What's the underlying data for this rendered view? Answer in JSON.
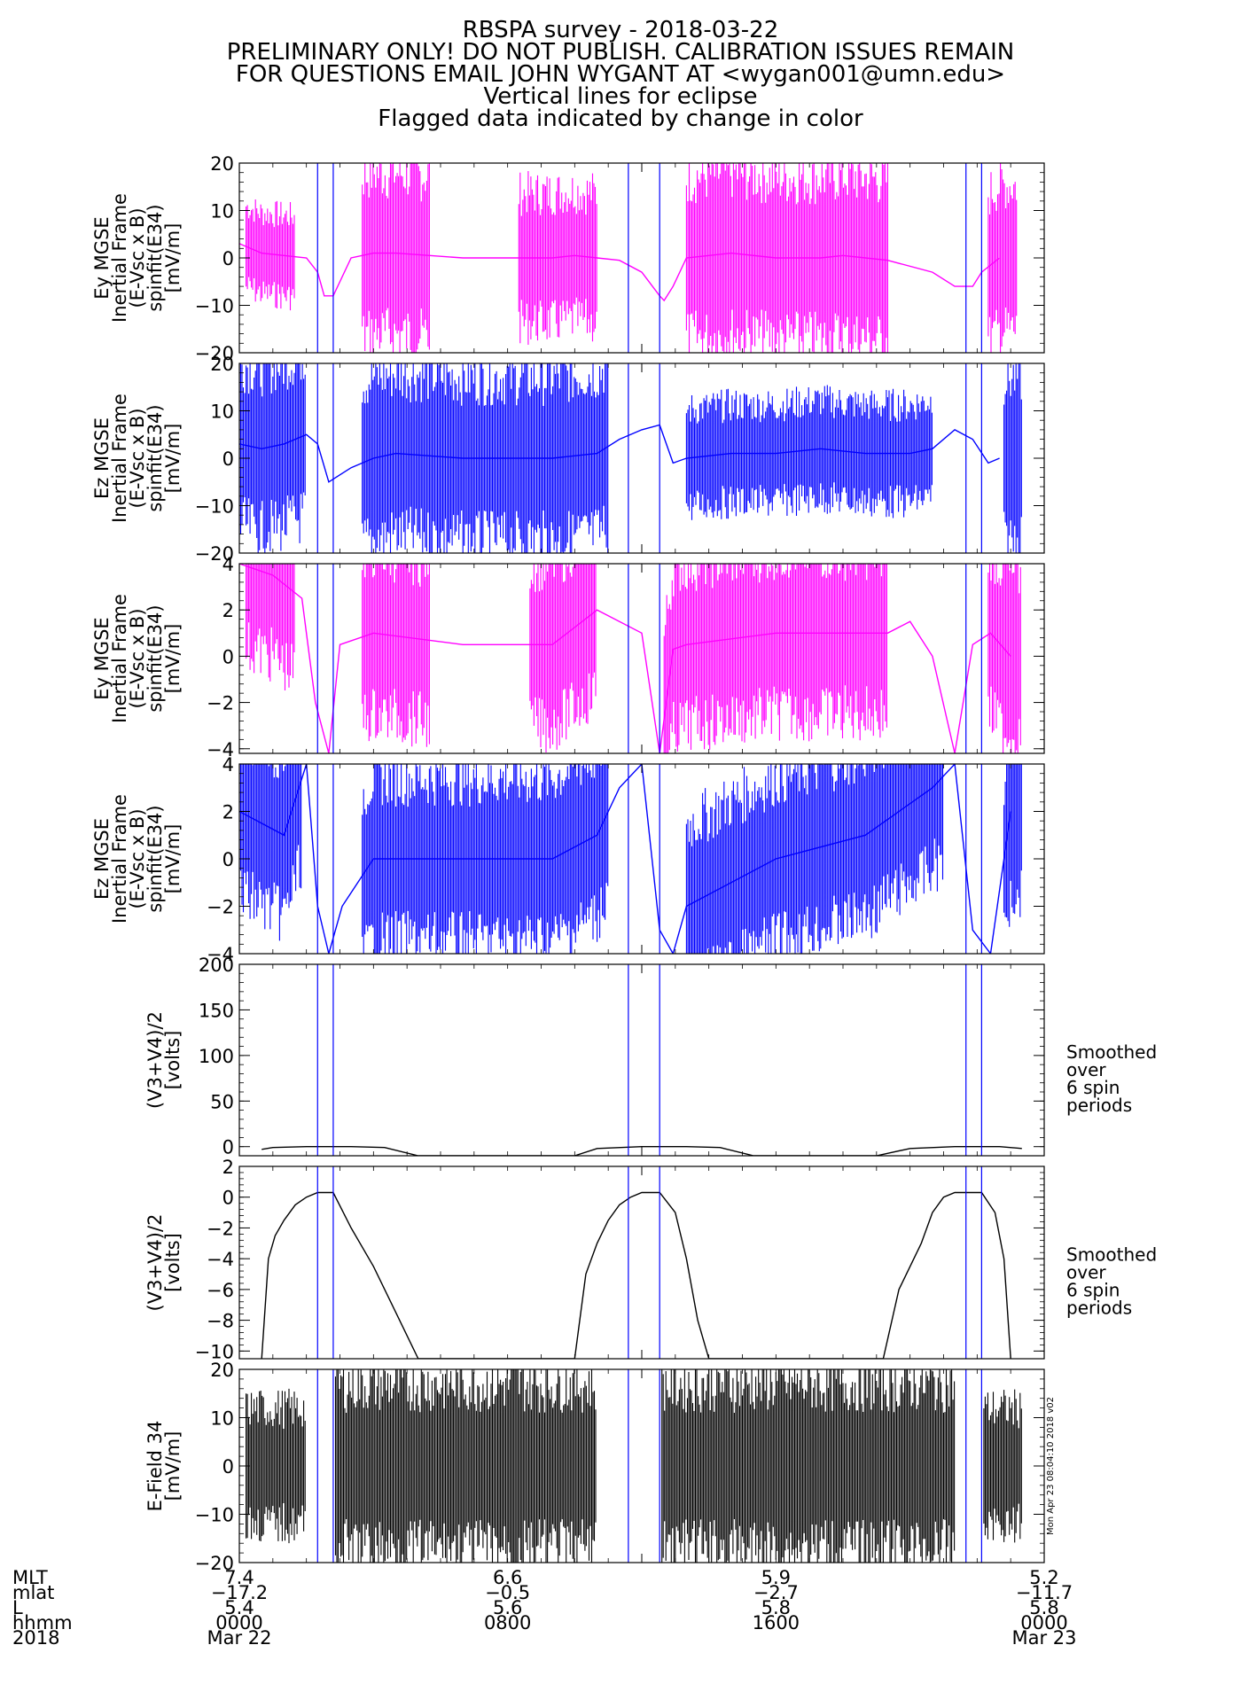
{
  "header": {
    "lines": [
      "RBSPA survey - 2018-03-22",
      "PRELIMINARY ONLY! DO NOT PUBLISH. CALIBRATION ISSUES REMAIN",
      "FOR QUESTIONS EMAIL JOHN WYGANT AT <wygan001@umn.edu>",
      "Vertical lines for eclipse",
      "Flagged data indicated by change in color"
    ]
  },
  "colors": {
    "magenta": "#ff00ff",
    "blue": "#0000ff",
    "black": "#000000",
    "eclipse_line": "#0000ff"
  },
  "chart_data": [
    {
      "type": "line",
      "panel": "Ey MGSE inertial (±20)",
      "ylabel": [
        "Ey MGSE",
        "Inertial Frame",
        "(E-Vsc x B)",
        "spinfit(E34)",
        "[mV/m]"
      ],
      "ylim": [
        -20,
        20
      ],
      "yticks": [
        -20,
        -10,
        0,
        10,
        20
      ],
      "color": "magenta",
      "smooth_x": [
        0,
        1,
        2,
        3,
        3.5,
        3.8,
        4.2,
        5,
        6,
        7,
        10,
        14,
        15,
        16,
        17,
        18,
        18.8,
        19,
        19.4,
        20,
        21,
        22,
        24,
        26,
        27,
        28,
        29,
        31,
        32,
        32.8,
        33.2,
        34
      ],
      "smooth_y": [
        3,
        1,
        0.5,
        0,
        -3,
        -8,
        -8,
        0,
        1,
        1,
        0,
        0,
        0.5,
        0,
        -0.5,
        -3,
        -8,
        -9,
        -6,
        0,
        0.5,
        1,
        0,
        0,
        0.5,
        0,
        -0.5,
        -3,
        -6,
        -6,
        -3,
        0
      ],
      "bursts": [
        [
          0.3,
          2.5,
          0.5
        ],
        [
          5.5,
          8.5,
          1.0
        ],
        [
          12.5,
          16.0,
          0.8
        ],
        [
          20.0,
          29.0,
          1.0
        ],
        [
          33.5,
          34.8,
          0.9
        ]
      ],
      "eclipses": [
        [
          3.5,
          4.2
        ],
        [
          17.4,
          18.8
        ],
        [
          32.5,
          33.2
        ]
      ]
    },
    {
      "type": "line",
      "panel": "Ez MGSE inertial (±20)",
      "ylabel": [
        "Ez MGSE",
        "Inertial Frame",
        "(E-Vsc x B)",
        "spinfit(E34)",
        "[mV/m]"
      ],
      "ylim": [
        -20,
        20
      ],
      "yticks": [
        -20,
        -10,
        0,
        10,
        20
      ],
      "color": "blue",
      "smooth_x": [
        0,
        1,
        2,
        3,
        3.5,
        4,
        5,
        6,
        7,
        10,
        14,
        16,
        17,
        18,
        18.8,
        19.4,
        20,
        22,
        24,
        26,
        28,
        30,
        31,
        32,
        32.8,
        33.5,
        34
      ],
      "smooth_y": [
        3,
        2,
        3,
        5,
        3,
        -5,
        -2,
        0,
        1,
        0,
        0,
        1,
        4,
        6,
        7,
        -1,
        0,
        1,
        1,
        2,
        1,
        1,
        2,
        6,
        4,
        -1,
        0
      ],
      "bursts": [
        [
          0,
          3.0,
          1.0
        ],
        [
          5.5,
          16.5,
          1.0
        ],
        [
          20.0,
          31.0,
          0.6
        ],
        [
          34.2,
          35.0,
          1.0
        ]
      ],
      "eclipses": [
        [
          3.5,
          4.2
        ],
        [
          17.4,
          18.8
        ],
        [
          32.5,
          33.2
        ]
      ]
    },
    {
      "type": "line",
      "panel": "Ey MGSE inertial (±4)",
      "ylabel": [
        "Ey MGSE",
        "Inertial Frame",
        "(E-Vsc x B)",
        "spinfit(E34)",
        "[mV/m]"
      ],
      "ylim": [
        -4.2,
        4
      ],
      "yticks": [
        -4,
        -2,
        0,
        2,
        4
      ],
      "color": "magenta",
      "smooth_x": [
        0,
        1.5,
        2.8,
        3.4,
        4.0,
        4.5,
        6,
        10,
        14,
        16,
        18,
        18.8,
        19.4,
        20,
        24,
        27,
        29,
        30,
        31,
        32,
        32.8,
        33.6,
        34.5
      ],
      "smooth_y": [
        4,
        3.5,
        2.5,
        -2,
        -4.2,
        0.5,
        1,
        0.5,
        0.5,
        2,
        1,
        -4.2,
        0.3,
        0.5,
        1,
        1,
        1,
        1.5,
        0,
        -4.2,
        0.5,
        1,
        0
      ],
      "bursts": [
        [
          0.3,
          2.5,
          1.0
        ],
        [
          5.5,
          8.5,
          1.0
        ],
        [
          13.0,
          16.0,
          1.0
        ],
        [
          19.0,
          29.0,
          1.0
        ],
        [
          33.5,
          35.0,
          1.0
        ]
      ],
      "eclipses": [
        [
          3.5,
          4.2
        ],
        [
          17.4,
          18.8
        ],
        [
          32.5,
          33.2
        ]
      ]
    },
    {
      "type": "line",
      "panel": "Ez MGSE inertial (±4)",
      "ylabel": [
        "Ez MGSE",
        "Inertial Frame",
        "(E-Vsc x B)",
        "spinfit(E34)",
        "[mV/m]"
      ],
      "ylim": [
        -4,
        4
      ],
      "yticks": [
        -4,
        -2,
        0,
        2,
        4
      ],
      "color": "blue",
      "smooth_x": [
        0,
        2,
        3,
        3.5,
        4.0,
        4.6,
        6,
        10,
        14,
        16,
        17,
        18,
        18.8,
        19.4,
        20,
        24,
        28,
        31,
        32,
        32.8,
        33.6,
        34.5
      ],
      "smooth_y": [
        2,
        1,
        4,
        -2,
        -4,
        -2,
        0,
        0,
        0,
        1,
        3,
        4,
        -3,
        -4,
        -2,
        0,
        1,
        3,
        4,
        -3,
        -4,
        2
      ],
      "bursts": [
        [
          0,
          2.8,
          1.0
        ],
        [
          5.5,
          16.5,
          1.0
        ],
        [
          20.0,
          31.5,
          1.0
        ],
        [
          34.2,
          35.0,
          1.0
        ]
      ],
      "eclipses": [
        [
          3.5,
          4.2
        ],
        [
          17.4,
          18.8
        ],
        [
          32.5,
          33.2
        ]
      ]
    },
    {
      "type": "line",
      "panel": "Smoothed probe potential (0-200)",
      "ylabel": [
        "(V3+V4)/2",
        "[volts]"
      ],
      "ylim": [
        -10,
        200
      ],
      "yticks": [
        0,
        50,
        100,
        150,
        200
      ],
      "color": "black",
      "smooth_x": [
        1.0,
        1.5,
        3.0,
        5.0,
        6.5,
        8.0,
        15.0,
        16.0,
        18.0,
        20.0,
        21.5,
        23.0,
        28.5,
        30.0,
        32.0,
        34.0,
        35.0
      ],
      "smooth_y": [
        -3,
        -1,
        0,
        0,
        -1,
        -10,
        -10,
        -2,
        0,
        0,
        -1,
        -10,
        -10,
        -2,
        0,
        0,
        -2
      ],
      "side_label": [
        "Smoothed",
        "over",
        "6 spin",
        "periods"
      ],
      "eclipses": [
        [
          3.5,
          4.2
        ],
        [
          17.4,
          18.8
        ],
        [
          32.5,
          33.2
        ]
      ]
    },
    {
      "type": "line",
      "panel": "Smoothed probe potential (-10-2)",
      "ylabel": [
        "(V3+V4)/2",
        "[volts]"
      ],
      "ylim": [
        -10.5,
        2
      ],
      "yticks": [
        -10,
        -8,
        -6,
        -4,
        -2,
        0,
        2
      ],
      "color": "black",
      "smooth_x": [
        1.0,
        1.3,
        1.6,
        2.0,
        2.5,
        3.0,
        3.5,
        4.0,
        4.2,
        5.0,
        6.0,
        7.0,
        8.0,
        15.0,
        15.5,
        16.0,
        16.5,
        17.0,
        17.5,
        18.0,
        18.5,
        18.8,
        19.5,
        20.0,
        20.5,
        21.0,
        28.8,
        29.5,
        30.5,
        31.0,
        31.5,
        32.0,
        32.5,
        33.0,
        33.2,
        33.8,
        34.2,
        34.5
      ],
      "smooth_y": [
        -10.5,
        -4,
        -2.5,
        -1.5,
        -0.5,
        0,
        0.3,
        0.3,
        0.3,
        -2,
        -4.5,
        -7.5,
        -10.5,
        -10.5,
        -5,
        -3,
        -1.5,
        -0.5,
        0,
        0.3,
        0.3,
        0.3,
        -1,
        -4,
        -8,
        -10.5,
        -10.5,
        -6,
        -3,
        -1,
        0,
        0.3,
        0.3,
        0.3,
        0.3,
        -1,
        -4,
        -10.5
      ],
      "side_label": [
        "Smoothed",
        "over",
        "6 spin",
        "periods"
      ],
      "eclipses": [
        [
          3.5,
          4.2
        ],
        [
          17.4,
          18.8
        ],
        [
          32.5,
          33.2
        ]
      ]
    },
    {
      "type": "line",
      "panel": "E-Field 34",
      "ylabel": [
        "E-Field 34",
        "[mV/m]"
      ],
      "ylim": [
        -20,
        20
      ],
      "yticks": [
        -20,
        -10,
        0,
        10,
        20
      ],
      "color": "black",
      "bursts": [
        [
          0.3,
          3.0,
          0.7
        ],
        [
          4.3,
          16.0,
          1.0
        ],
        [
          18.9,
          32.0,
          1.0
        ],
        [
          33.3,
          35.0,
          0.7
        ]
      ],
      "side_stamp": "Mon Apr 23 08:04:10 2018 v02",
      "eclipses": [
        [
          3.5,
          4.2
        ],
        [
          17.4,
          18.8
        ],
        [
          32.5,
          33.2
        ]
      ]
    }
  ],
  "x_axis": {
    "row_labels": [
      "MLT",
      "mlat",
      "L",
      "hhmm",
      "2018"
    ],
    "ticks": [
      {
        "hours": 0,
        "values": [
          "7.4",
          "-17.2",
          "5.4",
          "0000",
          "Mar 22"
        ]
      },
      {
        "hours": 8,
        "values": [
          "6.6",
          "-0.5",
          "5.6",
          "0800",
          ""
        ]
      },
      {
        "hours": 16,
        "values": [
          "5.9",
          "-2.7",
          "5.8",
          "1600",
          ""
        ]
      },
      {
        "hours": 24,
        "values": [
          "5.2",
          "-11.7",
          "5.8",
          "0000",
          "Mar 23"
        ]
      }
    ]
  }
}
